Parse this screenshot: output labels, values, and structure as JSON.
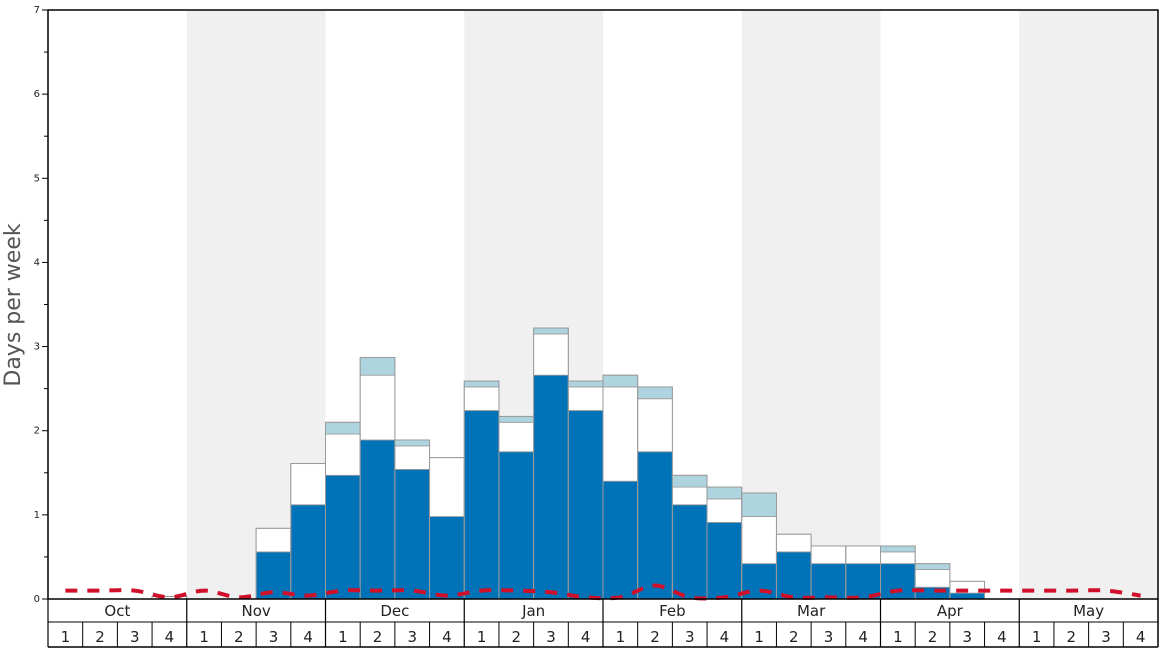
{
  "colors": {
    "bar_dark": "#0072b8",
    "bar_white": "#ffffff",
    "bar_light": "#aed4e0",
    "band_shade": "#f0f0f0",
    "avg_line": "#d0102a",
    "bar_edge": "#9a9a9a"
  },
  "chart_data": {
    "type": "bar",
    "stacked": true,
    "ylabel": "Days per week",
    "xlabel": "",
    "ylim": [
      0,
      7
    ],
    "y_ticks": [
      "0",
      "1",
      "2",
      "3",
      "4",
      "5",
      "6",
      "7"
    ],
    "months": [
      "Oct",
      "Nov",
      "Dec",
      "Jan",
      "Feb",
      "Mar",
      "Apr",
      "May"
    ],
    "weeks": [
      "1",
      "2",
      "3",
      "4"
    ],
    "shaded_months": [
      "Nov",
      "Jan",
      "Mar",
      "May"
    ],
    "grid": false,
    "series": [
      {
        "values": [
          0,
          0,
          0,
          0,
          0,
          0,
          0.56,
          1.12,
          1.47,
          1.89,
          1.54,
          0.98,
          2.24,
          1.75,
          2.66,
          2.24,
          1.4,
          1.75,
          1.12,
          0.91,
          0.42,
          0.56,
          0.42,
          0.42,
          0.42,
          0.14,
          0.07,
          0,
          0,
          0,
          0,
          0
        ]
      },
      {
        "values": [
          0,
          0,
          0,
          0.03,
          0,
          0,
          0.28,
          0.49,
          0.49,
          0.77,
          0.28,
          0.7,
          0.28,
          0.35,
          0.49,
          0.28,
          1.12,
          0.63,
          0.21,
          0.28,
          0.56,
          0.21,
          0.21,
          0.21,
          0.14,
          0.21,
          0.14,
          0,
          0,
          0,
          0,
          0
        ]
      },
      {
        "values": [
          0,
          0,
          0,
          0,
          0,
          0,
          0,
          0,
          0.14,
          0.21,
          0.07,
          0,
          0.07,
          0.07,
          0.07,
          0.07,
          0.14,
          0.14,
          0.14,
          0.14,
          0.28,
          0,
          0,
          0,
          0.07,
          0.07,
          0,
          0,
          0,
          0,
          0,
          0
        ]
      }
    ],
    "average_line": [
      0.1,
      0.1,
      0.1,
      0.02,
      0.1,
      0.02,
      0.08,
      0.04,
      0.1,
      0.1,
      0.1,
      0.04,
      0.1,
      0.1,
      0.08,
      0.02,
      0.02,
      0.16,
      0.02,
      0.02,
      0.1,
      0.02,
      0.02,
      0.02,
      0.1,
      0.1,
      0.1,
      0.1,
      0.1,
      0.1,
      0.1,
      0.04
    ]
  }
}
